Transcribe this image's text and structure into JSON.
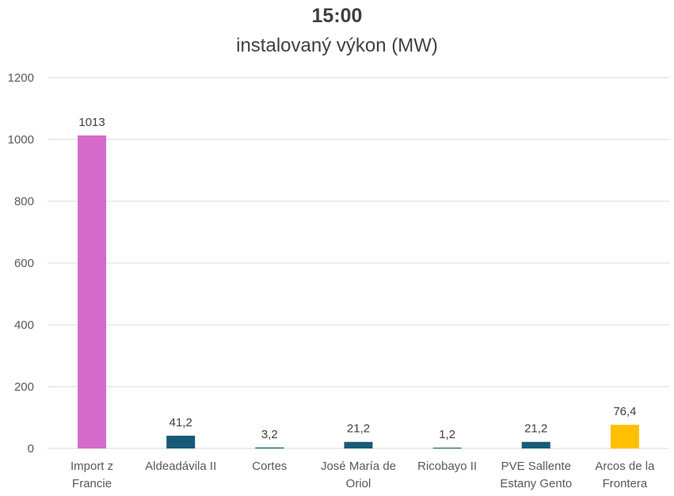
{
  "chart_data": {
    "type": "bar",
    "title": "15:00",
    "subtitle": "instalovaný výkon (MW)",
    "categories": [
      [
        "Import z",
        "Francie"
      ],
      [
        "Aldeadávila II"
      ],
      [
        "Cortes"
      ],
      [
        "José María de",
        "Oriol"
      ],
      [
        "Ricobayo II"
      ],
      [
        "PVE Sallente",
        "Estany Gento"
      ],
      [
        "Arcos de la",
        "Frontera"
      ]
    ],
    "values": [
      1013,
      41.2,
      3.2,
      21.2,
      1.2,
      21.2,
      76.4
    ],
    "data_labels": [
      "1013",
      "41,2",
      "3,2",
      "21,2",
      "1,2",
      "21,2",
      "76,4"
    ],
    "colors": [
      "#d46bcb",
      "#185a78",
      "#185a78",
      "#185a78",
      "#185a78",
      "#185a78",
      "#ffc000"
    ],
    "ylim": [
      0,
      1200
    ],
    "yticks": [
      0,
      200,
      400,
      600,
      800,
      1000,
      1200
    ],
    "grid": true,
    "xlabel": "",
    "ylabel": ""
  }
}
